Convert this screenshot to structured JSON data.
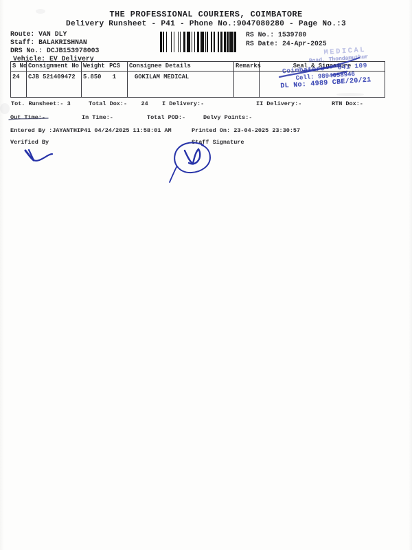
{
  "colors": {
    "ink": "#2a2a2e",
    "stamp_blue": "#3441b2",
    "pen_blue": "#2733a8"
  },
  "header": {
    "title": "THE PROFESSIONAL COURIERS, COIMBATORE",
    "subtitle": "Delivery Runsheet - P41 - Phone No.:9047080280 - Page No.:3"
  },
  "info": {
    "route": {
      "label": "Route:",
      "value": "VAN DLY"
    },
    "staff": {
      "label": "Staff:",
      "value": "BALAKRISHNAN"
    },
    "drs": {
      "label": "DRS No.:",
      "value": "DCJB153978003"
    },
    "vehicle": {
      "label": "Vehicle:",
      "value": "EV Delivery"
    },
    "rs_no": {
      "label": "RS No.:",
      "value": "1539780"
    },
    "rs_date": {
      "label": "RS Date:",
      "value": "24-Apr-2025"
    }
  },
  "barcode": {
    "pattern": "2112141213111321411212214111131213122121214121"
  },
  "table": {
    "headers": {
      "s_no": "S No",
      "consignment_no": "Consignment No",
      "weight": "Weight",
      "pcs": "PCS",
      "consignee": "Consignee Details",
      "remarks": "Remarks",
      "seal": "Seal & Signature"
    },
    "row": {
      "s_no": "24",
      "consignment_no": "CJB 521409472",
      "weight": "5.850",
      "pcs": "1",
      "consignee": "GOKILAM MEDICAL",
      "remarks": ""
    }
  },
  "stamp": {
    "line_faint_top": "MEDICAL",
    "line_address": "Road, Thondamuthur",
    "line_city": "Coimbatore - 641 109",
    "line_cell": "Cell: 9894058946",
    "line_dl": "DL No: 4989 CBE/20/21"
  },
  "totals": {
    "runsheet_label": "Tot. Runsheet:-",
    "runsheet_value": "3",
    "dox_label": "Total Dox:-",
    "dox_value": "24",
    "i_delivery_label": "I Delivery:-",
    "ii_delivery_label": "II Delivery:-",
    "rtn_label": "RTN Dox:-"
  },
  "times": {
    "out": "Out Time:-",
    "in": "In Time:-",
    "pod": "Total POD:-",
    "delvy": "Delvy Points:-"
  },
  "footer": {
    "entered": "Entered By :JAYANTHIP41 04/24/2025 11:58:01 AM",
    "printed": "Printed On: 23-04-2025 23:30:57",
    "verified_label": "Verified By",
    "staff_label": "Staff Signature"
  }
}
